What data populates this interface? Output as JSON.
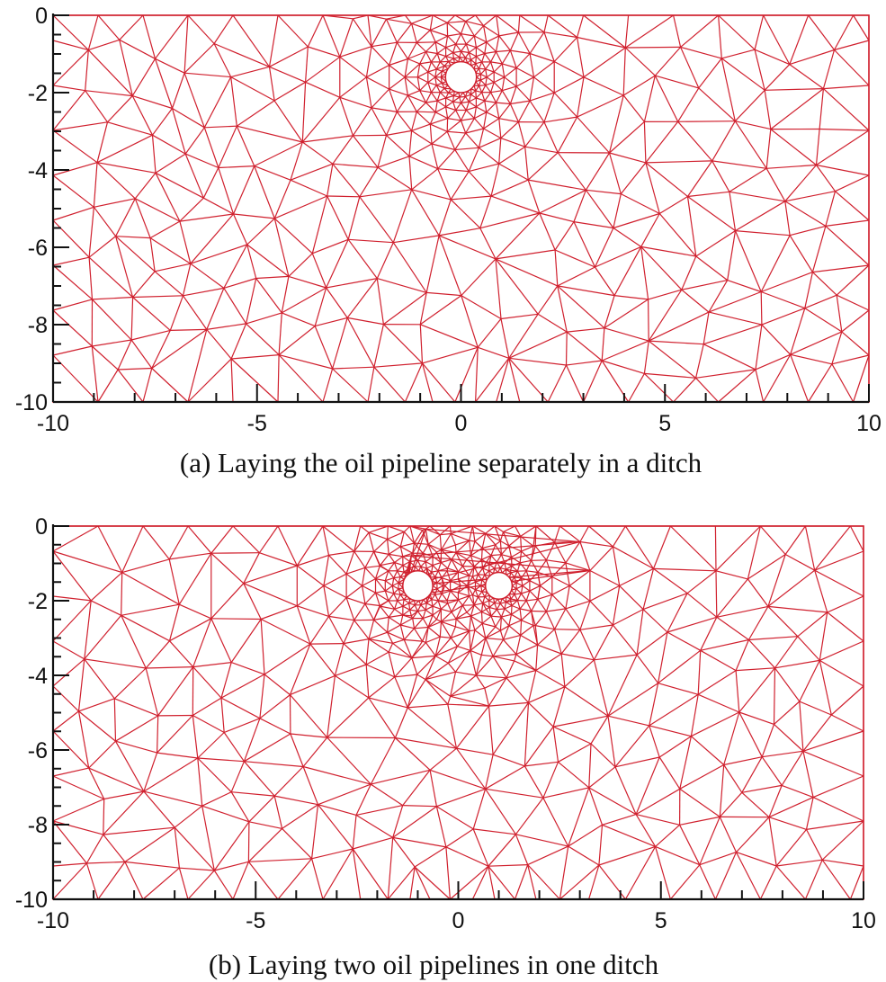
{
  "figure": {
    "panels": [
      {
        "id": "a",
        "caption": "(a) Laying the oil pipeline separately in a ditch",
        "pipes": [
          {
            "x": 0,
            "y": -1.6,
            "r": 0.38
          }
        ]
      },
      {
        "id": "b",
        "caption": "(b) Laying two oil pipelines in one ditch",
        "pipes": [
          {
            "x": -1.0,
            "y": -1.6,
            "r": 0.37
          },
          {
            "x": 1.0,
            "y": -1.6,
            "r": 0.33
          }
        ]
      }
    ],
    "x_ticks": [
      "-10",
      "-5",
      "0",
      "5",
      "10"
    ],
    "y_ticks": [
      "0",
      "-2",
      "-4",
      "-6",
      "-8",
      "-10"
    ],
    "x_range": [
      -10,
      10
    ],
    "y_range": [
      -10,
      0
    ],
    "mesh_color": "#d0202e",
    "axis_color": "#111111"
  }
}
